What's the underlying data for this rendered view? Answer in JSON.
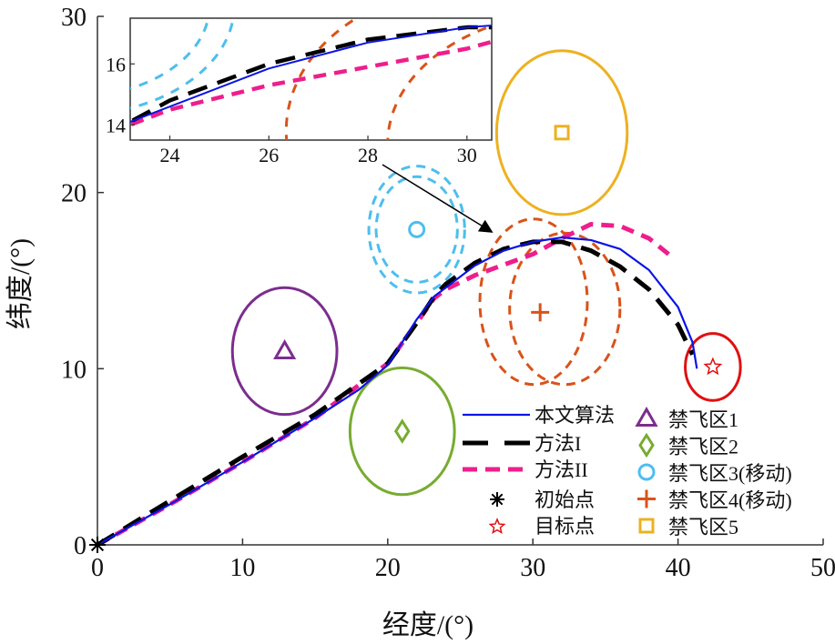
{
  "chart_data": {
    "type": "line",
    "xlabel": "经度/(°)",
    "ylabel": "纬度/(°)",
    "xlim": [
      0,
      50
    ],
    "ylim": [
      0,
      30
    ],
    "xticks": [
      0,
      10,
      20,
      30,
      40,
      50
    ],
    "yticks": [
      0,
      10,
      20,
      30
    ],
    "series": [
      {
        "name": "本文算法",
        "color": "#0a14e6",
        "style": "solid",
        "points": [
          [
            0,
            0
          ],
          [
            5,
            2.3
          ],
          [
            10,
            4.7
          ],
          [
            15,
            7.2
          ],
          [
            18,
            8.8
          ],
          [
            20,
            10.2
          ],
          [
            22,
            12.8
          ],
          [
            23.2,
            14.1
          ],
          [
            24,
            14.6
          ],
          [
            26,
            15.85
          ],
          [
            28,
            16.7
          ],
          [
            30,
            17.2
          ],
          [
            32,
            17.45
          ],
          [
            34,
            17.3
          ],
          [
            36,
            16.8
          ],
          [
            38,
            15.6
          ],
          [
            40,
            13.5
          ],
          [
            41,
            11.5
          ],
          [
            41.3,
            10
          ]
        ]
      },
      {
        "name": "方法I",
        "color": "#000000",
        "style": "longdash",
        "points": [
          [
            0,
            0
          ],
          [
            5,
            2.5
          ],
          [
            10,
            5
          ],
          [
            15,
            7.4
          ],
          [
            20,
            10.3
          ],
          [
            22,
            12.6
          ],
          [
            23.2,
            14.1
          ],
          [
            24,
            14.8
          ],
          [
            26,
            16.0
          ],
          [
            28,
            16.8
          ],
          [
            30,
            17.2
          ],
          [
            32,
            17.2
          ],
          [
            34,
            16.7
          ],
          [
            36,
            15.8
          ],
          [
            38,
            14.5
          ],
          [
            40,
            12.5
          ],
          [
            41,
            10.8
          ]
        ]
      },
      {
        "name": "方法II",
        "color": "#ee1e8c",
        "style": "dash",
        "points": [
          [
            0,
            0
          ],
          [
            5,
            2.3
          ],
          [
            10,
            4.7
          ],
          [
            15,
            7.2
          ],
          [
            20,
            10.3
          ],
          [
            22,
            12.6
          ],
          [
            23.2,
            14.0
          ],
          [
            24,
            14.5
          ],
          [
            26,
            15.3
          ],
          [
            28,
            15.9
          ],
          [
            30,
            16.5
          ],
          [
            32,
            17.4
          ],
          [
            34,
            18.2
          ],
          [
            36,
            18.1
          ],
          [
            38,
            17.4
          ],
          [
            39.5,
            16.4
          ]
        ]
      }
    ],
    "start": {
      "name": "初始点",
      "point": [
        0,
        0
      ],
      "color": "#000000"
    },
    "target": {
      "name": "目标点",
      "point": [
        42.4,
        10.1
      ],
      "radius": 1.9,
      "color": "#e01010"
    },
    "zones": [
      {
        "name": "禁飞区1",
        "marker": "triangle",
        "color": "#7b2d8e",
        "center": [
          12.9,
          11.0
        ],
        "ellipses": [
          {
            "c": [
              12.9,
              11.0
            ],
            "r": [
              3.6,
              3.6
            ],
            "dashed": false
          }
        ]
      },
      {
        "name": "禁飞区2",
        "marker": "diamond",
        "color": "#77ac30",
        "center": [
          21.0,
          6.45
        ],
        "ellipses": [
          {
            "c": [
              21.0,
              6.45
            ],
            "r": [
              3.6,
              3.6
            ],
            "dashed": false
          }
        ]
      },
      {
        "name": "禁飞区3(移动)",
        "marker": "circle",
        "color": "#4dbeee",
        "center": [
          22.0,
          17.9
        ],
        "ellipses": [
          {
            "c": [
              22.0,
              17.9
            ],
            "r": [
              2.8,
              3.0
            ],
            "dashed": true
          },
          {
            "c": [
              22.0,
              17.9
            ],
            "r": [
              3.3,
              3.6
            ],
            "dashed": true
          }
        ]
      },
      {
        "name": "禁飞区4(移动)",
        "marker": "plus",
        "color": "#d95319",
        "center": [
          30.5,
          13.2
        ],
        "ellipses": [
          {
            "c": [
              30.05,
              13.8
            ],
            "r": [
              3.7,
              4.7
            ],
            "dashed": true
          },
          {
            "c": [
              32.2,
              13.4
            ],
            "r": [
              3.8,
              4.3
            ],
            "dashed": true
          }
        ]
      },
      {
        "name": "禁飞区5",
        "marker": "square",
        "color": "#edb120",
        "center": [
          32.0,
          23.4
        ],
        "ellipses": [
          {
            "c": [
              32.0,
              23.4
            ],
            "r": [
              4.5,
              4.65
            ],
            "dashed": false
          }
        ]
      }
    ],
    "inset": {
      "xlim": [
        23.2,
        30.5
      ],
      "ylim": [
        13.5,
        17.5
      ],
      "xticks": [
        24,
        26,
        28,
        30
      ],
      "yticks": [
        14,
        16
      ],
      "arrow_to": [
        27.1,
        17.8
      ]
    }
  }
}
